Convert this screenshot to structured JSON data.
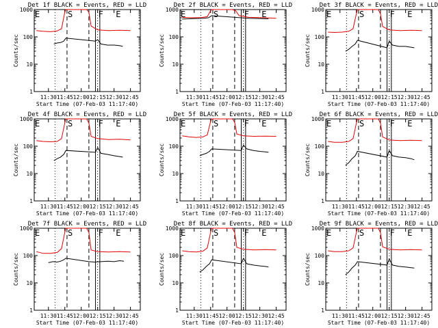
{
  "colors": {
    "events": "#000000",
    "lld": "#e00000",
    "axis": "#000000",
    "background": "#ffffff"
  },
  "chart_data": [
    {
      "type": "line",
      "title": "Det 1f BLACK = Events, RED = LLD",
      "xlabel": "Start Time (07-Feb-03 11:17:40)",
      "ylabel": "Counts/sec",
      "x_ticks": [
        "11:30",
        "11:45",
        "12:00",
        "12:15",
        "12:30",
        "12:45"
      ],
      "y_ticks": [
        "1",
        "10",
        "100",
        "1000"
      ],
      "y_scale": "log",
      "ylim": [
        1,
        1000
      ],
      "markers": [
        "E",
        "S",
        "F",
        "E"
      ],
      "series": [
        {
          "name": "Events",
          "x": [
            "11:35",
            "11:38",
            "11:41",
            "11:44",
            "11:46",
            "12:13",
            "12:15",
            "12:18",
            "12:24",
            "12:30",
            "12:35",
            "12:38"
          ],
          "y": [
            55,
            60,
            62,
            70,
            90,
            70,
            80,
            55,
            50,
            50,
            48,
            45
          ]
        },
        {
          "name": "LLD",
          "x": [
            "11:19",
            "11:25",
            "11:32",
            "11:38",
            "11:42",
            "11:45",
            "11:46",
            "11:55",
            "12:05",
            "12:07",
            "12:09",
            "12:15",
            "12:25",
            "12:35",
            "12:45"
          ],
          "y": [
            170,
            160,
            155,
            165,
            200,
            800,
            1000,
            1000,
            1000,
            800,
            250,
            180,
            170,
            175,
            170
          ]
        }
      ]
    },
    {
      "type": "line",
      "title": "Det 2f BLACK = Events, RED = LLD",
      "xlabel": "Start Time (07-Feb-03 11:17:40)",
      "ylabel": "Counts/sec",
      "x_ticks": [
        "11:30",
        "11:45",
        "12:00",
        "12:15",
        "12:30",
        "12:45"
      ],
      "y_ticks": [
        "1",
        "10",
        "100",
        "1000"
      ],
      "y_scale": "log",
      "ylim": [
        1,
        1000
      ],
      "markers": [
        "E",
        "S",
        "F",
        "E"
      ],
      "series": [
        {
          "name": "Events",
          "x": [
            "11:19",
            "11:30",
            "11:38",
            "11:43",
            "11:46",
            "12:13",
            "12:20",
            "12:30",
            "12:38"
          ],
          "y": [
            450,
            470,
            480,
            500,
            600,
            500,
            480,
            470,
            460
          ]
        },
        {
          "name": "LLD",
          "x": [
            "11:19",
            "11:28",
            "11:36",
            "11:42",
            "11:45",
            "11:46",
            "11:55",
            "12:05",
            "12:08",
            "12:11",
            "12:20",
            "12:35",
            "12:45"
          ],
          "y": [
            520,
            500,
            510,
            550,
            900,
            1000,
            1000,
            1000,
            900,
            600,
            520,
            500,
            480
          ]
        }
      ]
    },
    {
      "type": "line",
      "title": "Det 3f BLACK = Events, RED = LLD",
      "xlabel": "Start Time (07-Feb-03 11:17:40)",
      "ylabel": "Counts/sec",
      "x_ticks": [
        "11:30",
        "11:45",
        "12:00",
        "12:15",
        "12:30",
        "12:45"
      ],
      "y_ticks": [
        "1",
        "10",
        "100",
        "1000"
      ],
      "y_scale": "log",
      "ylim": [
        1,
        1000
      ],
      "markers": [
        "E",
        "S",
        "F",
        "E"
      ],
      "series": [
        {
          "name": "Events",
          "x": [
            "11:35",
            "11:38",
            "11:41",
            "11:44",
            "11:46",
            "12:13",
            "12:15",
            "12:18",
            "12:24",
            "12:30",
            "12:35",
            "12:38"
          ],
          "y": [
            30,
            35,
            45,
            55,
            75,
            40,
            70,
            50,
            45,
            45,
            42,
            40
          ]
        },
        {
          "name": "LLD",
          "x": [
            "11:19",
            "11:25",
            "11:32",
            "11:38",
            "11:42",
            "11:45",
            "11:46",
            "11:55",
            "12:05",
            "12:07",
            "12:09",
            "12:15",
            "12:25",
            "12:35",
            "12:45"
          ],
          "y": [
            150,
            145,
            150,
            160,
            200,
            700,
            1000,
            1000,
            1000,
            700,
            240,
            180,
            170,
            175,
            170
          ]
        }
      ]
    },
    {
      "type": "line",
      "title": "Det 4f BLACK = Events, RED = LLD",
      "xlabel": "Start Time (07-Feb-03 11:17:40)",
      "ylabel": "Counts/sec",
      "x_ticks": [
        "11:30",
        "11:45",
        "12:00",
        "12:15",
        "12:30",
        "12:45"
      ],
      "y_ticks": [
        "1",
        "10",
        "100",
        "1000"
      ],
      "y_scale": "log",
      "ylim": [
        1,
        1000
      ],
      "markers": [
        "E",
        "S",
        "F",
        "E"
      ],
      "series": [
        {
          "name": "Events",
          "x": [
            "11:35",
            "11:38",
            "11:41",
            "11:44",
            "11:46",
            "12:13",
            "12:15",
            "12:18",
            "12:24",
            "12:30",
            "12:35",
            "12:38"
          ],
          "y": [
            30,
            35,
            40,
            50,
            70,
            60,
            90,
            55,
            50,
            45,
            42,
            40
          ]
        },
        {
          "name": "LLD",
          "x": [
            "11:19",
            "11:25",
            "11:32",
            "11:38",
            "11:42",
            "11:45",
            "11:46",
            "11:55",
            "12:05",
            "12:07",
            "12:09",
            "12:15",
            "12:25",
            "12:35",
            "12:45"
          ],
          "y": [
            160,
            150,
            145,
            150,
            190,
            700,
            1000,
            1000,
            1000,
            700,
            230,
            190,
            175,
            180,
            170
          ]
        }
      ]
    },
    {
      "type": "line",
      "title": "Det 5f BLACK = Events, RED = LLD",
      "xlabel": "Start Time (07-Feb-03 11:17:40)",
      "ylabel": "Counts/sec",
      "x_ticks": [
        "11:30",
        "11:45",
        "12:00",
        "12:15",
        "12:30",
        "12:45"
      ],
      "y_ticks": [
        "1",
        "10",
        "100",
        "1000"
      ],
      "y_scale": "log",
      "ylim": [
        1,
        1000
      ],
      "markers": [
        "E",
        "S",
        "F",
        "E"
      ],
      "series": [
        {
          "name": "Events",
          "x": [
            "11:35",
            "11:38",
            "11:41",
            "11:44",
            "11:46",
            "12:13",
            "12:15",
            "12:18",
            "12:24",
            "12:30",
            "12:35",
            "12:38"
          ],
          "y": [
            45,
            50,
            55,
            65,
            80,
            70,
            110,
            80,
            70,
            65,
            62,
            60
          ]
        },
        {
          "name": "LLD",
          "x": [
            "11:19",
            "11:25",
            "11:32",
            "11:38",
            "11:42",
            "11:45",
            "11:46",
            "11:55",
            "12:05",
            "12:07",
            "12:09",
            "12:15",
            "12:25",
            "12:35",
            "12:45"
          ],
          "y": [
            240,
            220,
            210,
            220,
            260,
            800,
            1000,
            1000,
            1000,
            750,
            280,
            240,
            230,
            235,
            230
          ]
        }
      ]
    },
    {
      "type": "line",
      "title": "Det 6f BLACK = Events, RED = LLD",
      "xlabel": "Start Time (07-Feb-03 11:17:40)",
      "ylabel": "Counts/sec",
      "x_ticks": [
        "11:30",
        "11:45",
        "12:00",
        "12:15",
        "12:30",
        "12:45"
      ],
      "y_ticks": [
        "1",
        "10",
        "100",
        "1000"
      ],
      "y_scale": "log",
      "ylim": [
        1,
        1000
      ],
      "markers": [
        "E",
        "S",
        "F",
        "E"
      ],
      "series": [
        {
          "name": "Events",
          "x": [
            "11:35",
            "11:38",
            "11:41",
            "11:44",
            "11:46",
            "12:13",
            "12:15",
            "12:18",
            "12:24",
            "12:30",
            "12:35",
            "12:38"
          ],
          "y": [
            20,
            25,
            35,
            45,
            65,
            40,
            70,
            45,
            40,
            38,
            35,
            32
          ]
        },
        {
          "name": "LLD",
          "x": [
            "11:19",
            "11:25",
            "11:32",
            "11:38",
            "11:42",
            "11:45",
            "11:46",
            "11:55",
            "12:05",
            "12:07",
            "12:09",
            "12:15",
            "12:25",
            "12:35",
            "12:45"
          ],
          "y": [
            150,
            140,
            140,
            150,
            190,
            700,
            1000,
            1000,
            1000,
            700,
            220,
            170,
            160,
            165,
            160
          ]
        }
      ]
    },
    {
      "type": "line",
      "title": "Det 7f BLACK = Events, RED = LLD",
      "xlabel": "Start Time (07-Feb-03 11:17:40)",
      "ylabel": "Counts/sec",
      "x_ticks": [
        "11:30",
        "11:45",
        "12:00",
        "12:15",
        "12:30",
        "12:45"
      ],
      "y_ticks": [
        "1",
        "10",
        "100",
        "1000"
      ],
      "y_scale": "log",
      "ylim": [
        1,
        1000
      ],
      "markers": [
        "E",
        "S",
        "F",
        "E"
      ],
      "series": [
        {
          "name": "Events",
          "x": [
            "11:30",
            "11:34",
            "11:38",
            "11:41",
            "11:44",
            "11:46",
            "12:07",
            "12:12",
            "12:18",
            "12:24",
            "12:30",
            "12:35",
            "12:39"
          ],
          "y": [
            55,
            60,
            58,
            62,
            70,
            80,
            60,
            58,
            60,
            62,
            60,
            65,
            62
          ]
        },
        {
          "name": "LLD",
          "x": [
            "11:19",
            "11:25",
            "11:32",
            "11:38",
            "11:42",
            "11:45",
            "11:46",
            "11:55",
            "12:05",
            "12:07",
            "12:09",
            "12:15",
            "12:25",
            "12:35",
            "12:45"
          ],
          "y": [
            140,
            120,
            120,
            130,
            180,
            700,
            1000,
            1000,
            1000,
            700,
            160,
            140,
            135,
            140,
            135
          ]
        }
      ]
    },
    {
      "type": "line",
      "title": "Det 8f BLACK = Events, RED = LLD",
      "xlabel": "Start Time (07-Feb-03 11:17:40)",
      "ylabel": "Counts/sec",
      "x_ticks": [
        "11:30",
        "11:45",
        "12:00",
        "12:15",
        "12:30",
        "12:45"
      ],
      "y_ticks": [
        "1",
        "10",
        "100",
        "1000"
      ],
      "y_scale": "log",
      "ylim": [
        1,
        1000
      ],
      "markers": [
        "E",
        "S",
        "F",
        "E"
      ],
      "series": [
        {
          "name": "Events",
          "x": [
            "11:35",
            "11:38",
            "11:41",
            "11:44",
            "11:46",
            "12:13",
            "12:15",
            "12:18",
            "12:24",
            "12:30",
            "12:35",
            "12:38"
          ],
          "y": [
            25,
            30,
            40,
            50,
            70,
            50,
            80,
            50,
            45,
            42,
            40,
            38
          ]
        },
        {
          "name": "LLD",
          "x": [
            "11:19",
            "11:25",
            "11:32",
            "11:38",
            "11:42",
            "11:45",
            "11:46",
            "11:55",
            "12:05",
            "12:07",
            "12:09",
            "12:15",
            "12:25",
            "12:35",
            "12:45"
          ],
          "y": [
            150,
            140,
            135,
            145,
            190,
            700,
            1000,
            1000,
            1000,
            700,
            200,
            170,
            160,
            165,
            160
          ]
        }
      ]
    },
    {
      "type": "line",
      "title": "Det 9f BLACK = Events, RED = LLD",
      "xlabel": "Start Time (07-Feb-03 11:17:40)",
      "ylabel": "Counts/sec",
      "x_ticks": [
        "11:30",
        "11:45",
        "12:00",
        "12:15",
        "12:30",
        "12:45"
      ],
      "y_ticks": [
        "1",
        "10",
        "100",
        "1000"
      ],
      "y_scale": "log",
      "ylim": [
        1,
        1000
      ],
      "markers": [
        "E",
        "S",
        "F",
        "E"
      ],
      "series": [
        {
          "name": "Events",
          "x": [
            "11:35",
            "11:38",
            "11:41",
            "11:44",
            "11:46",
            "12:13",
            "12:15",
            "12:18",
            "12:24",
            "12:30",
            "12:35",
            "12:38"
          ],
          "y": [
            20,
            25,
            35,
            45,
            60,
            45,
            75,
            45,
            40,
            38,
            36,
            35
          ]
        },
        {
          "name": "LLD",
          "x": [
            "11:19",
            "11:25",
            "11:32",
            "11:38",
            "11:42",
            "11:45",
            "11:46",
            "11:55",
            "12:05",
            "12:07",
            "12:09",
            "12:15",
            "12:25",
            "12:35",
            "12:45"
          ],
          "y": [
            150,
            140,
            140,
            150,
            190,
            700,
            1000,
            1000,
            1000,
            700,
            210,
            170,
            160,
            165,
            160
          ]
        }
      ]
    }
  ]
}
